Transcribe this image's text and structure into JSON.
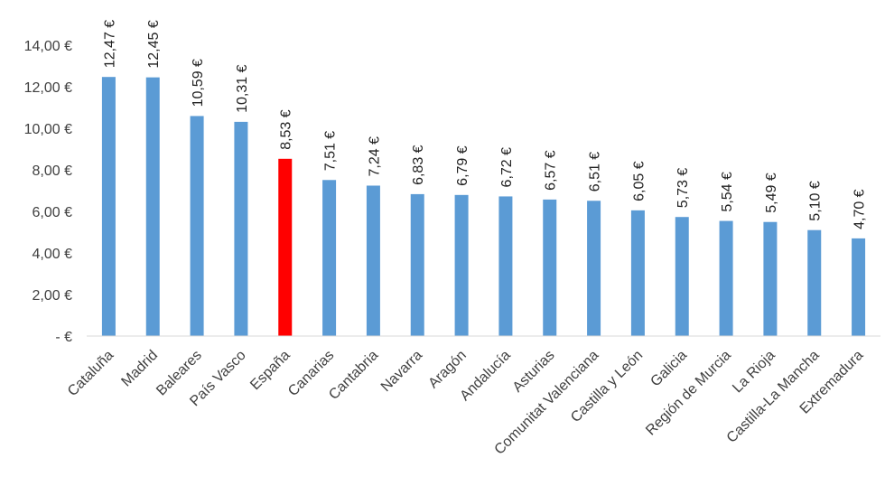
{
  "chart_data": {
    "type": "bar",
    "categories": [
      "Cataluña",
      "Madrid",
      "Baleares",
      "País Vasco",
      "España",
      "Canarias",
      "Cantabria",
      "Navarra",
      "Aragón",
      "Andalucía",
      "Asturias",
      "Comunitat Valenciana",
      "Castilla y León",
      "Galicia",
      "Región de Murcia",
      "La Rioja",
      "Castilla-La Mancha",
      "Extremadura"
    ],
    "values": [
      12.47,
      12.45,
      10.59,
      10.31,
      8.53,
      7.51,
      7.24,
      6.83,
      6.79,
      6.72,
      6.57,
      6.51,
      6.05,
      5.73,
      5.54,
      5.49,
      5.1,
      4.7
    ],
    "data_labels": [
      "12,47 €",
      "12,45 €",
      "10,59 €",
      "10,31 €",
      "8,53 €",
      "7,51 €",
      "7,24 €",
      "6,83 €",
      "6,79 €",
      "6,72 €",
      "6,57 €",
      "6,51 €",
      "6,05 €",
      "5,73 €",
      "5,54 €",
      "5,49 €",
      "5,10 €",
      "4,70 €"
    ],
    "yticks": [
      0,
      2,
      4,
      6,
      8,
      10,
      12,
      14
    ],
    "ytick_labels": [
      "-  €",
      "2,00 €",
      "4,00 €",
      "6,00 €",
      "8,00 €",
      "10,00 €",
      "12,00 €",
      "14,00 €"
    ],
    "ylim": [
      0,
      14
    ],
    "highlight_category": "España",
    "grid": false,
    "legend": "none",
    "title": "",
    "xlabel": "",
    "ylabel": "",
    "colors": {
      "bar": "#5B9BD5",
      "highlight": "#FF0000",
      "axis": "#D9D9D9"
    }
  }
}
